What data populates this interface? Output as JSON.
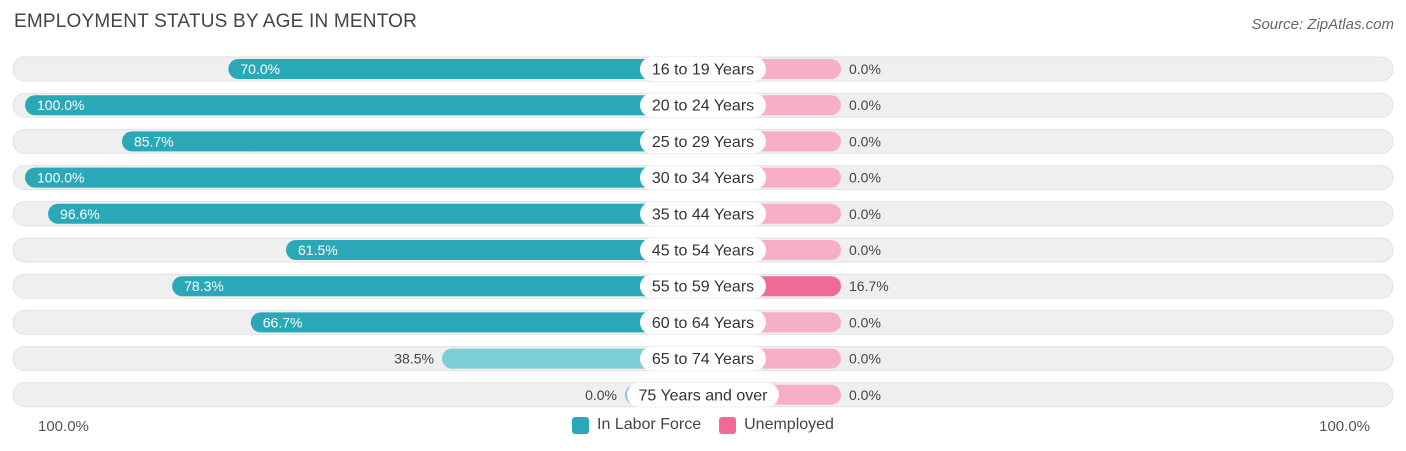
{
  "title": "EMPLOYMENT STATUS BY AGE IN MENTOR",
  "source": "Source: ZipAtlas.com",
  "colors": {
    "labor": "#2aa8b8",
    "labor_light": "#7ccdd6",
    "unemployed": "#f06a96",
    "unemployed_light": "#f7afc7",
    "track": "#efefef"
  },
  "axis": {
    "left_label": "100.0%",
    "right_label": "100.0%"
  },
  "legend": [
    {
      "label": "In Labor Force",
      "color": "#2aa8b8"
    },
    {
      "label": "Unemployed",
      "color": "#f06a96"
    }
  ],
  "chart_data": {
    "type": "bar",
    "orientation": "horizontal-diverging",
    "xlim": [
      -100,
      100
    ],
    "categories": [
      "16 to 19 Years",
      "20 to 24 Years",
      "25 to 29 Years",
      "30 to 34 Years",
      "35 to 44 Years",
      "45 to 54 Years",
      "55 to 59 Years",
      "60 to 64 Years",
      "65 to 74 Years",
      "75 Years and over"
    ],
    "series": [
      {
        "name": "In Labor Force",
        "values": [
          70.0,
          100.0,
          85.7,
          100.0,
          96.6,
          61.5,
          78.3,
          66.7,
          38.5,
          0.0
        ],
        "labels": [
          "70.0%",
          "100.0%",
          "85.7%",
          "100.0%",
          "96.6%",
          "61.5%",
          "78.3%",
          "66.7%",
          "38.5%",
          "0.0%"
        ]
      },
      {
        "name": "Unemployed",
        "values": [
          0.0,
          0.0,
          0.0,
          0.0,
          0.0,
          0.0,
          16.7,
          0.0,
          0.0,
          0.0
        ],
        "labels": [
          "0.0%",
          "0.0%",
          "0.0%",
          "0.0%",
          "0.0%",
          "0.0%",
          "16.7%",
          "0.0%",
          "0.0%",
          "0.0%"
        ]
      }
    ],
    "grid": false,
    "legend_position": "bottom-center"
  }
}
